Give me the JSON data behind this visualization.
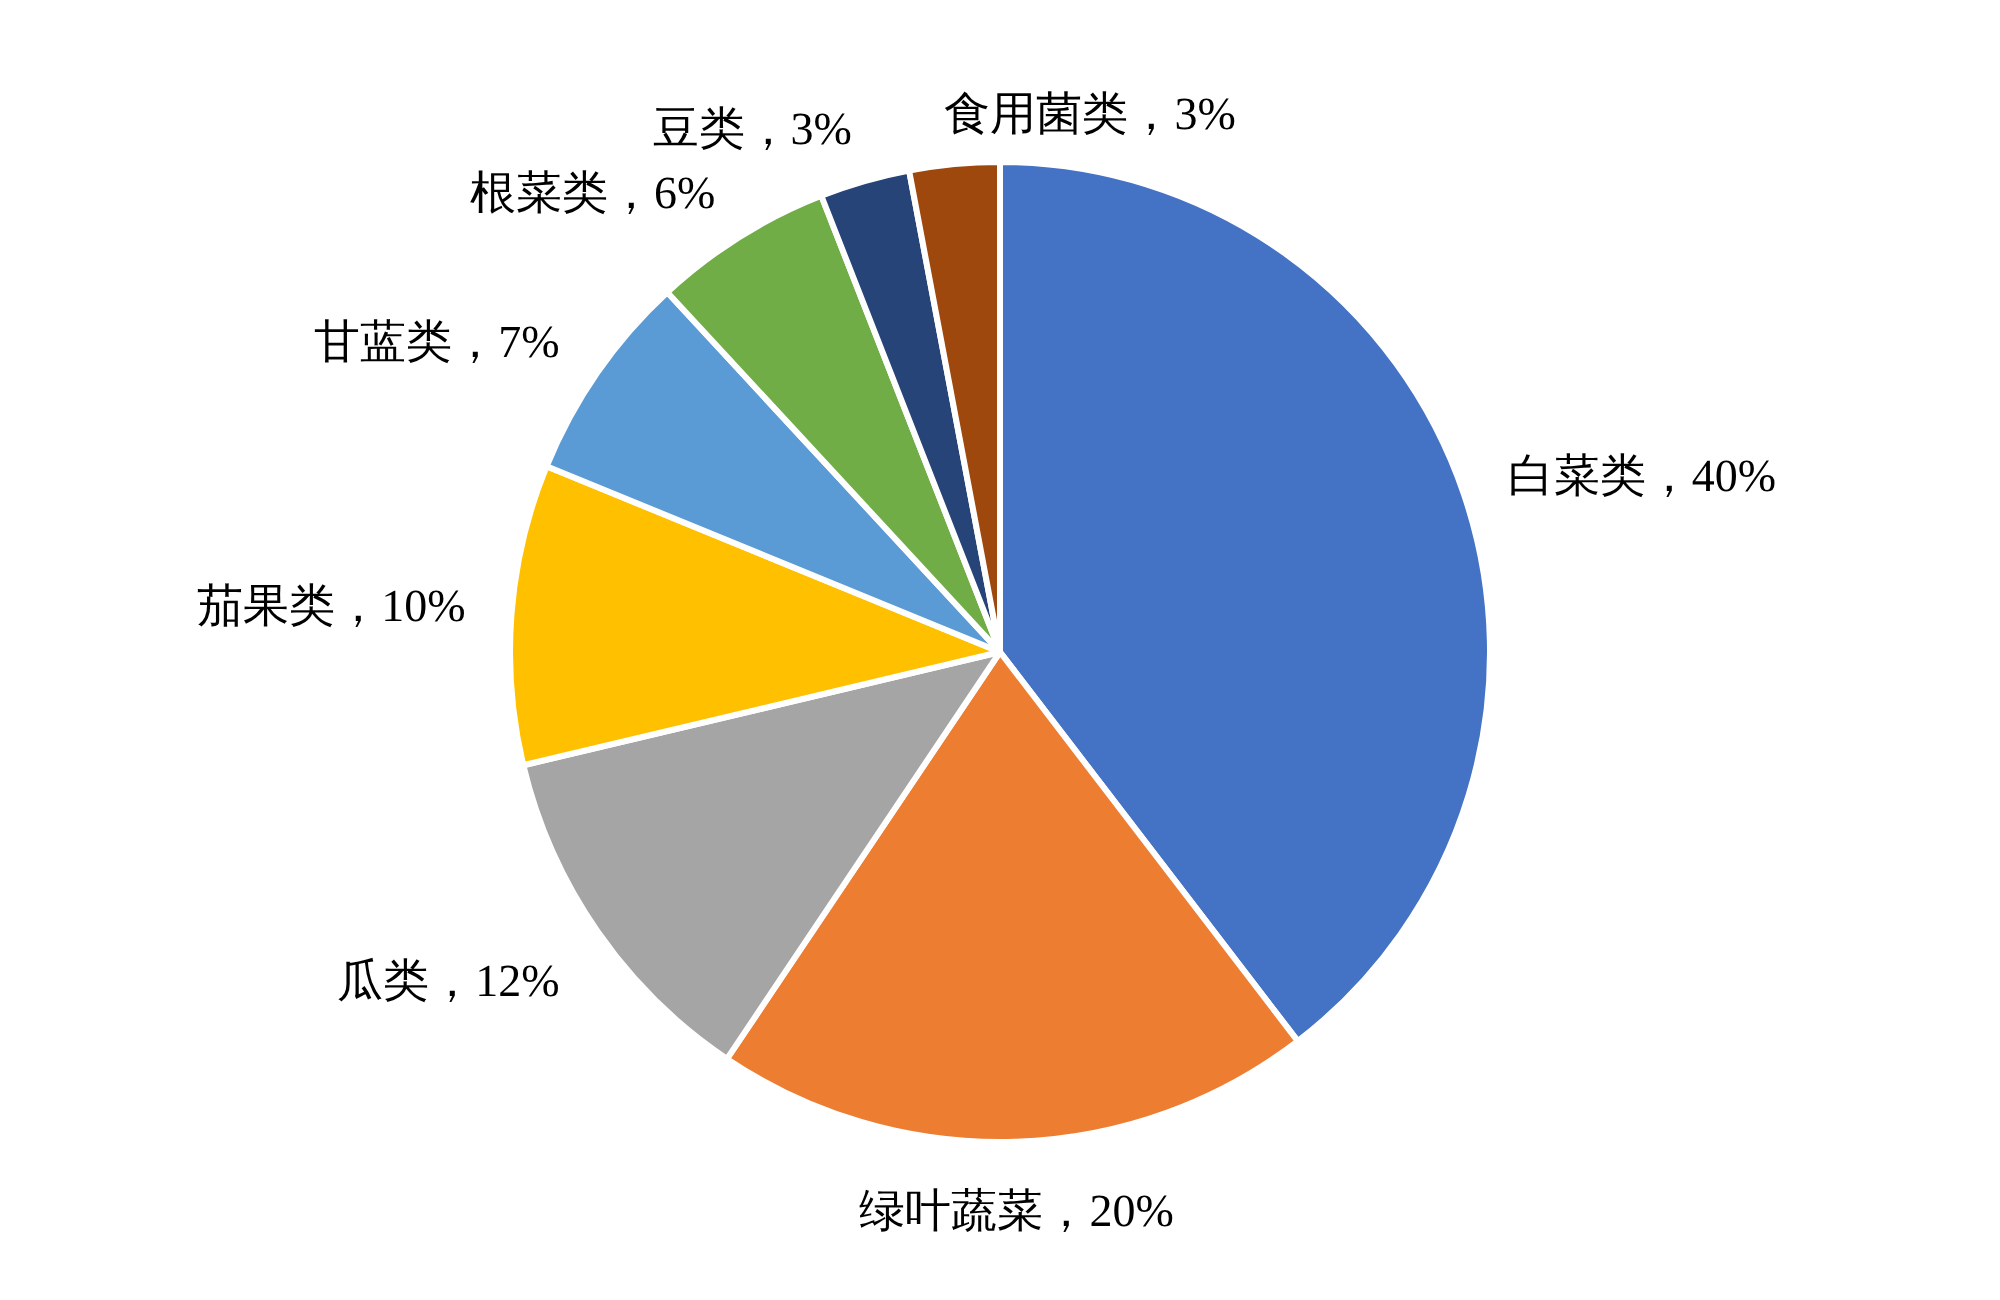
{
  "chart_data": {
    "type": "pie",
    "categories": [
      "白菜类",
      "绿叶蔬菜",
      "瓜类",
      "茄果类",
      "甘蓝类",
      "根菜类",
      "豆类",
      "食用菌类"
    ],
    "values": [
      40,
      20,
      12,
      10,
      7,
      6,
      3,
      3
    ],
    "value_labels": [
      "40%",
      "20%",
      "12%",
      "10%",
      "7%",
      "6%",
      "3%",
      "3%"
    ],
    "colors": [
      "#4472c4",
      "#ed7d31",
      "#a5a5a5",
      "#ffc000",
      "#5b9bd5",
      "#70ad47",
      "#264478",
      "#9e480e"
    ]
  }
}
